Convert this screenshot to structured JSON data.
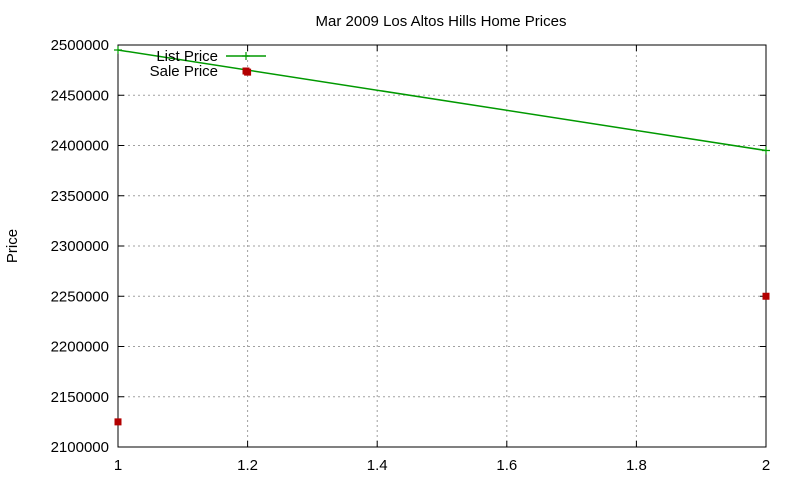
{
  "chart_data": {
    "type": "line",
    "title": "Mar 2009 Los Altos Hills Home Prices",
    "xlabel": "",
    "ylabel": "Price",
    "xlim": [
      1,
      2
    ],
    "ylim": [
      2100000,
      2500000
    ],
    "xticks": [
      1,
      1.2,
      1.4,
      1.6,
      1.8,
      2
    ],
    "xtick_labels": [
      "1",
      "1.2",
      "1.4",
      "1.6",
      "1.8",
      "2"
    ],
    "yticks": [
      2100000,
      2150000,
      2200000,
      2250000,
      2300000,
      2350000,
      2400000,
      2450000,
      2500000
    ],
    "ytick_labels": [
      "2100000",
      "2150000",
      "2200000",
      "2250000",
      "2300000",
      "2350000",
      "2400000",
      "2450000",
      "2500000"
    ],
    "grid": true,
    "legend_position": "top-left",
    "series": [
      {
        "name": "List Price",
        "style": "line-with-plus-markers",
        "color": "#009900",
        "points": [
          [
            1,
            2495000
          ],
          [
            2,
            2395000
          ]
        ]
      },
      {
        "name": "Sale Price",
        "style": "square-markers",
        "color": "#b30000",
        "points": [
          [
            1,
            2125000
          ],
          [
            1.2,
            2473000
          ],
          [
            2,
            2250000
          ]
        ]
      }
    ]
  }
}
